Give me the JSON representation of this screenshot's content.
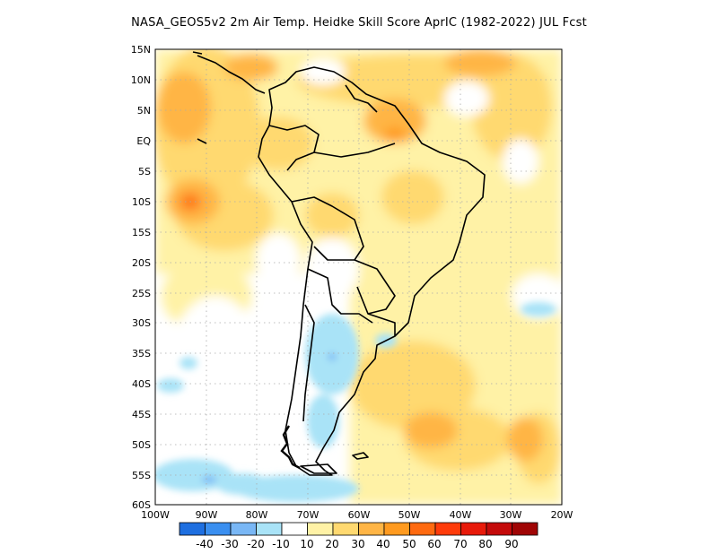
{
  "title": "NASA_GEOS5v2  2m Air Temp. Heidke Skill Score AprIC (1982-2022) JUL Fcst",
  "map": {
    "lat_labels": [
      "15N",
      "10N",
      "5N",
      "EQ",
      "5S",
      "10S",
      "15S",
      "20S",
      "25S",
      "30S",
      "35S",
      "40S",
      "45S",
      "50S",
      "55S",
      "60S"
    ],
    "lon_labels": [
      "100W",
      "90W",
      "80W",
      "70W",
      "60W",
      "50W",
      "40W",
      "30W",
      "20W"
    ],
    "lat_range": [
      -60,
      15
    ],
    "lon_range": [
      -100,
      -20
    ],
    "grid": "dotted"
  },
  "colorbar": {
    "labels": [
      "-40",
      "-30",
      "-20",
      "-10",
      "10",
      "20",
      "30",
      "40",
      "50",
      "60",
      "70",
      "80",
      "90"
    ],
    "colors": [
      "#1e6fe0",
      "#3a8ff0",
      "#79b7f5",
      "#a9e3f7",
      "#ffffff",
      "#fff2a6",
      "#ffd970",
      "#ffb545",
      "#ff9a1f",
      "#ff6a10",
      "#ff3b0a",
      "#e81a0a",
      "#c40a0a",
      "#a00505"
    ]
  }
}
